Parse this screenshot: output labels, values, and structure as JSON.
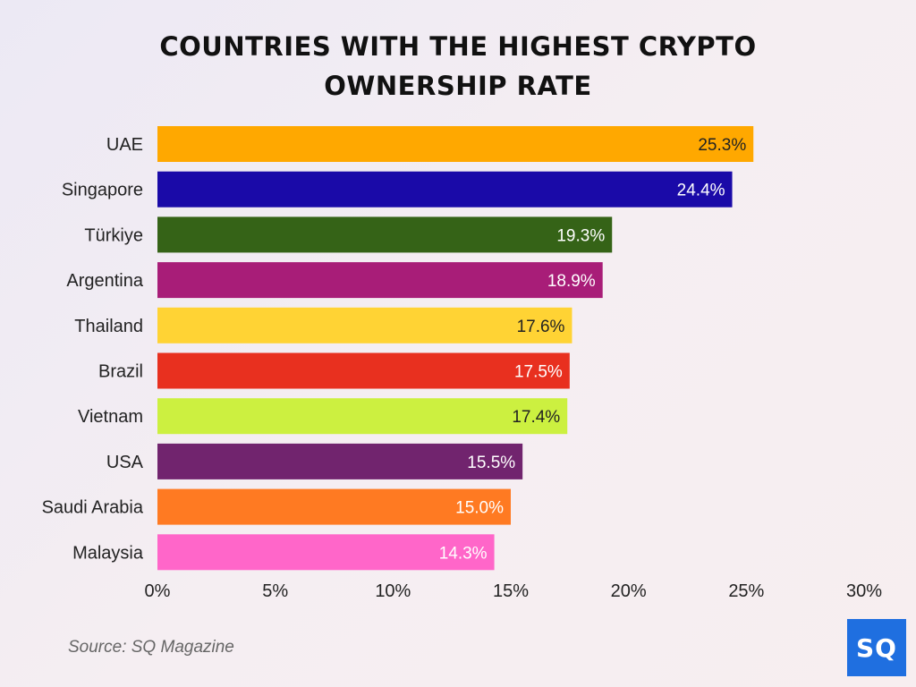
{
  "chart_data": {
    "type": "bar",
    "orientation": "horizontal",
    "title_lines": [
      "COUNTRIES WITH THE HIGHEST CRYPTO",
      "OWNERSHIP RATE"
    ],
    "categories": [
      "UAE",
      "Singapore",
      "Türkiye",
      "Argentina",
      "Thailand",
      "Brazil",
      "Vietnam",
      "USA",
      "Saudi Arabia",
      "Malaysia"
    ],
    "values": [
      25.3,
      24.4,
      19.3,
      18.9,
      17.6,
      17.5,
      17.4,
      15.5,
      15.0,
      14.3
    ],
    "data_labels": [
      "25.3%",
      "24.4%",
      "19.3%",
      "18.9%",
      "17.6%",
      "17.5%",
      "17.4%",
      "15.5%",
      "15.0%",
      "14.3%"
    ],
    "bar_colors": [
      "#ffa800",
      "#1a0aa8",
      "#356317",
      "#a81d78",
      "#ffd334",
      "#e8301f",
      "#ccf040",
      "#71246e",
      "#ff7a22",
      "#ff66c9"
    ],
    "label_colors": [
      "#222222",
      "#ffffff",
      "#ffffff",
      "#ffffff",
      "#222222",
      "#ffffff",
      "#222222",
      "#ffffff",
      "#ffffff",
      "#ffffff"
    ],
    "xlim": [
      0,
      30
    ],
    "xticks": [
      0,
      5,
      10,
      15,
      20,
      25,
      30
    ],
    "xtick_labels": [
      "0%",
      "5%",
      "10%",
      "15%",
      "20%",
      "25%",
      "30%"
    ],
    "grid": false,
    "legend": "none"
  },
  "source": "Source: SQ Magazine",
  "logo": {
    "text": "SQ",
    "color": "#1f6fe0"
  }
}
